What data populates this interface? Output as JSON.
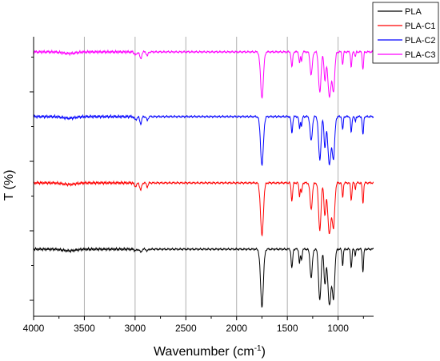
{
  "chart_data": {
    "type": "line",
    "title": "",
    "xlabel": "Wavenumber (cm",
    "xlabel_sup": "-1",
    "xlabel_close": ")",
    "ylabel": "T (%)",
    "xlim": [
      4000,
      650
    ],
    "x_reversed": true,
    "xticks": [
      4000,
      3500,
      3000,
      2500,
      2000,
      1500,
      1000
    ],
    "xtick_labels": [
      "4000",
      "3500",
      "3000",
      "2500",
      "2000",
      "1500",
      "1000"
    ],
    "grid": "vertical",
    "legend_position": "top-right",
    "series": [
      {
        "name": "PLA",
        "color": "#000000",
        "offset": 0
      },
      {
        "name": "PLA-C1",
        "color": "#ff0000",
        "offset": 1
      },
      {
        "name": "PLA-C2",
        "color": "#0000ff",
        "offset": 2
      },
      {
        "name": "PLA-C3",
        "color": "#ff00ff",
        "offset": 3
      }
    ],
    "bands_cm-1": [
      2995,
      2945,
      2880,
      1750,
      1455,
      1380,
      1360,
      1265,
      1180,
      1130,
      1085,
      1045,
      955,
      870,
      755
    ]
  }
}
